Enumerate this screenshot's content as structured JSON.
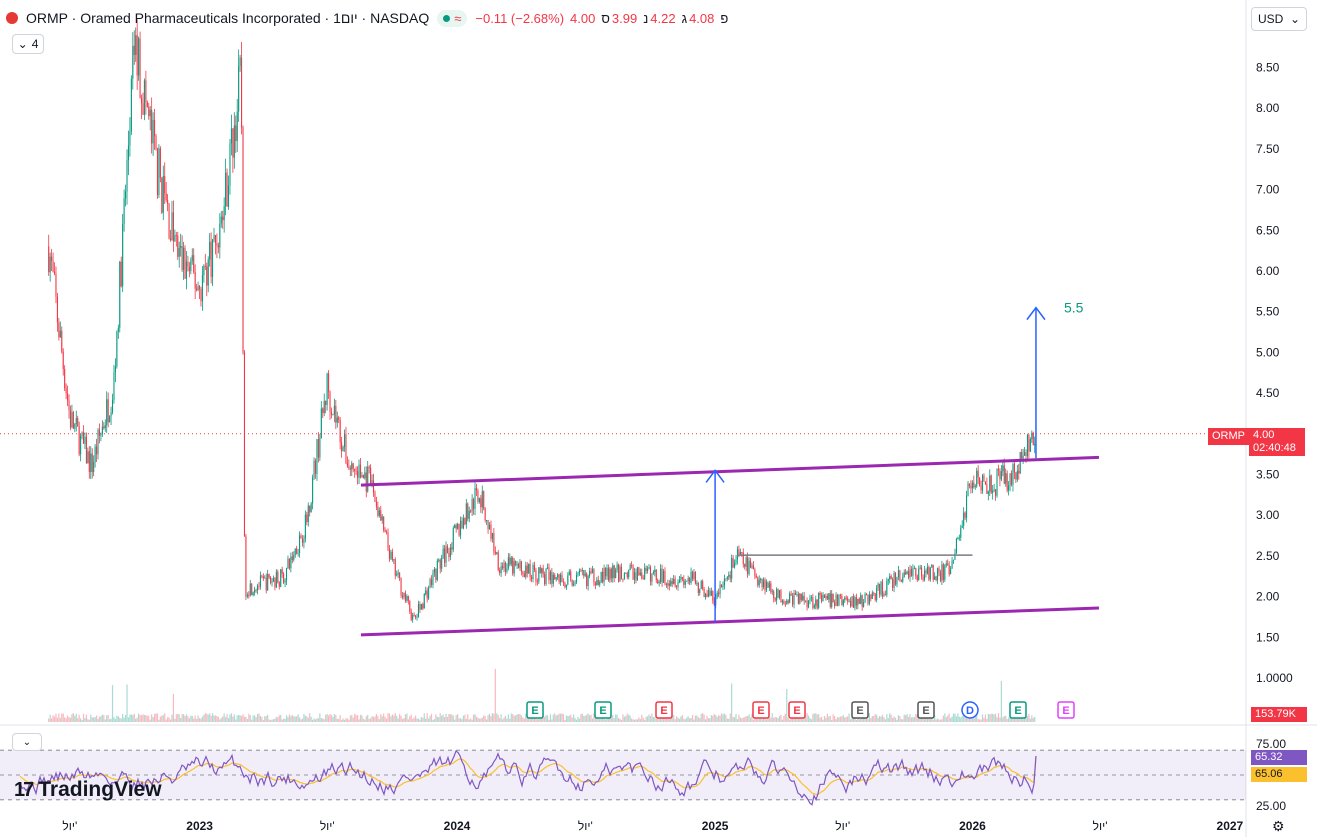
{
  "header": {
    "title": "ORMP · Oramed Pharmaceuticals Incorporated · 1יום · NASDAQ",
    "change": "−0.11 (−2.68%)",
    "open_label": "פ",
    "open_value": "4.08",
    "high_label": "ג",
    "high_value": "4.22",
    "low_label": "נ",
    "low_value": "3.99",
    "close_label": "ס",
    "close_value": "4.00",
    "indicator_count": "4",
    "currency": "USD"
  },
  "price_tag": {
    "symbol": "ORMP",
    "price": "4.00",
    "countdown": "02:40:48"
  },
  "volume_tag": "153.79K",
  "rsi_tags": {
    "rsi": "65.32",
    "ma": "65.06"
  },
  "logo_text": "TradingView",
  "colors": {
    "up": "#089981",
    "down": "#f23645",
    "channel": "#9c27b0",
    "arrow": "#2962ff",
    "rsi": "#7e57c2",
    "rsi_ma": "#fbc02d",
    "target": "#089981"
  },
  "icons": [
    "red-logo-icon",
    "live-dot-icon",
    "chevron-down-icon",
    "settings-icon",
    "tradingview-logo-icon"
  ],
  "chart_data": {
    "type": "candlestick",
    "title": "",
    "price_axis_ticks": [
      "8.50",
      "8.00",
      "7.50",
      "7.00",
      "6.50",
      "6.00",
      "5.50",
      "5.00",
      "4.50",
      "4.00",
      "3.50",
      "3.00",
      "2.50",
      "2.00",
      "1.50",
      "1.0000"
    ],
    "rsi_axis_ticks": [
      "75.00",
      "25.00"
    ],
    "time_axis_labels": [
      "יול'",
      "2023",
      "יול'",
      "2024",
      "יול'",
      "2025",
      "יול'",
      "2026",
      "יול'",
      "2027"
    ],
    "price_path": [
      [
        "2022-06",
        6.3
      ],
      [
        "2022-07",
        4.2
      ],
      [
        "2022-08",
        3.6
      ],
      [
        "2022-09",
        4.6
      ],
      [
        "2022-10",
        8.8
      ],
      [
        "2022-11",
        7.3
      ],
      [
        "2022-12",
        6.2
      ],
      [
        "2023-01",
        5.8
      ],
      [
        "2023-02",
        6.6
      ],
      [
        "2023-03",
        8.4
      ],
      [
        "2023-03-20",
        2.1
      ],
      [
        "2023-05",
        2.25
      ],
      [
        "2023-06",
        2.9
      ],
      [
        "2023-07",
        4.6
      ],
      [
        "2023-08",
        3.6
      ],
      [
        "2023-09",
        3.4
      ],
      [
        "2023-10",
        2.4
      ],
      [
        "2023-11",
        1.7
      ],
      [
        "2023-12",
        2.3
      ],
      [
        "2024-02",
        3.3
      ],
      [
        "2024-03",
        2.4
      ],
      [
        "2024-06",
        2.2
      ],
      [
        "2024-09",
        2.3
      ],
      [
        "2024-12",
        2.2
      ],
      [
        "2025-01",
        1.95
      ],
      [
        "2025-02",
        2.5
      ],
      [
        "2025-04",
        2.0
      ],
      [
        "2025-06",
        1.95
      ],
      [
        "2025-08",
        1.95
      ],
      [
        "2025-10",
        2.3
      ],
      [
        "2025-12",
        2.3
      ],
      [
        "2026-01",
        3.5
      ],
      [
        "2026-02",
        3.4
      ],
      [
        "2026-03",
        3.5
      ],
      [
        "2026-04",
        4.0
      ]
    ],
    "last_price": 4.0,
    "channel_upper": {
      "from": [
        "2023-09",
        3.37
      ],
      "to": [
        "2026-06",
        3.71
      ]
    },
    "channel_lower": {
      "from": [
        "2023-09",
        1.53
      ],
      "to": [
        "2026-06",
        1.86
      ]
    },
    "resistance_line": {
      "from": [
        "2025-02",
        2.51
      ],
      "to": [
        "2026-01",
        2.51
      ]
    },
    "measure_arrows": [
      {
        "at": "2025-01",
        "from": 1.68,
        "to": 3.55
      },
      {
        "at": "2026-04",
        "from": 3.7,
        "to": 5.55
      }
    ],
    "target_label": "5.5",
    "earnings_markers": [
      "E",
      "E",
      "E",
      "E",
      "E",
      "E",
      "E",
      "D",
      "E",
      "E"
    ],
    "rsi_levels": [
      70,
      50,
      30
    ],
    "rsi_last": 65.32,
    "rsi_ma_last": 65.06
  }
}
